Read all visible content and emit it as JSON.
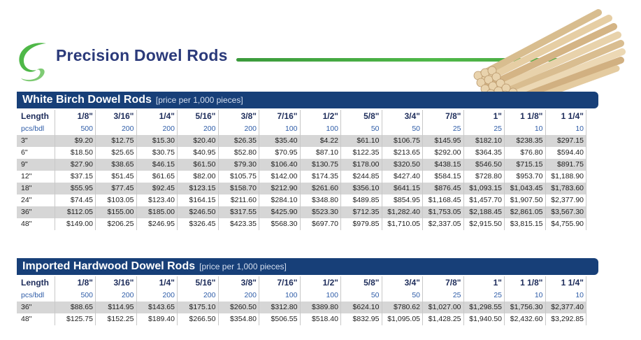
{
  "page_title": "Precision Dowel Rods",
  "colors": {
    "navy": "#173f78",
    "green": "#4fb848",
    "title": "#2b3a7a",
    "shade": "#d6d6d6"
  },
  "header_labels": {
    "length": "Length",
    "pcs": "pcs/bdl"
  },
  "sizes": [
    "1/8\"",
    "3/16\"",
    "1/4\"",
    "5/16\"",
    "3/8\"",
    "7/16\"",
    "1/2\"",
    "5/8\"",
    "3/4\"",
    "7/8\"",
    "1\"",
    "1 1/8\"",
    "1 1/4\""
  ],
  "pcs_per_bundle": [
    "500",
    "200",
    "200",
    "200",
    "200",
    "100",
    "100",
    "50",
    "50",
    "25",
    "25",
    "10",
    "10"
  ],
  "birch": {
    "title": "White Birch Dowel Rods",
    "note": "[price per 1,000 pieces]",
    "rows": [
      {
        "length": "3\"",
        "prices": [
          "$9.20",
          "$12.75",
          "$15.30",
          "$20.40",
          "$26.35",
          "$35.40",
          "$4.22",
          "$61.10",
          "$106.75",
          "$145.95",
          "$182.10",
          "$238.35",
          "$297.15"
        ]
      },
      {
        "length": "6\"",
        "prices": [
          "$18.50",
          "$25.65",
          "$30.75",
          "$40.95",
          "$52.80",
          "$70.95",
          "$87.10",
          "$122.35",
          "$213.65",
          "$292.00",
          "$364.35",
          "$76.80",
          "$594.40"
        ]
      },
      {
        "length": "9\"",
        "prices": [
          "$27.90",
          "$38.65",
          "$46.15",
          "$61.50",
          "$79.30",
          "$106.40",
          "$130.75",
          "$178.00",
          "$320.50",
          "$438.15",
          "$546.50",
          "$715.15",
          "$891.75"
        ]
      },
      {
        "length": "12\"",
        "prices": [
          "$37.15",
          "$51.45",
          "$61.65",
          "$82.00",
          "$105.75",
          "$142.00",
          "$174.35",
          "$244.85",
          "$427.40",
          "$584.15",
          "$728.80",
          "$953.70",
          "$1,188.90"
        ]
      },
      {
        "length": "18\"",
        "prices": [
          "$55.95",
          "$77.45",
          "$92.45",
          "$123.15",
          "$158.70",
          "$212.90",
          "$261.60",
          "$356.10",
          "$641.15",
          "$876.45",
          "$1,093.15",
          "$1,043.45",
          "$1,783.60"
        ]
      },
      {
        "length": "24\"",
        "prices": [
          "$74.45",
          "$103.05",
          "$123.40",
          "$164.15",
          "$211.60",
          "$284.10",
          "$348.80",
          "$489.85",
          "$854.95",
          "$1,168.45",
          "$1,457.70",
          "$1,907.50",
          "$2,377.90"
        ]
      },
      {
        "length": "36\"",
        "prices": [
          "$112.05",
          "$155.00",
          "$185.00",
          "$246.50",
          "$317.55",
          "$425.90",
          "$523.30",
          "$712.35",
          "$1,282.40",
          "$1,753.05",
          "$2,188.45",
          "$2,861.05",
          "$3,567.30"
        ]
      },
      {
        "length": "48\"",
        "prices": [
          "$149.00",
          "$206.25",
          "$246.95",
          "$326.45",
          "$423.35",
          "$568.30",
          "$697.70",
          "$979.85",
          "$1,710.05",
          "$2,337.05",
          "$2,915.50",
          "$3,815.15",
          "$4,755.90"
        ]
      }
    ]
  },
  "hardwood": {
    "title": "Imported Hardwood Dowel Rods",
    "note": "[price per 1,000 pieces]",
    "rows": [
      {
        "length": "36\"",
        "prices": [
          "$88.65",
          "$114.95",
          "$143.65",
          "$175.10",
          "$260.50",
          "$312.80",
          "$389.80",
          "$624.10",
          "$780.62",
          "$1,027.00",
          "$1,298.55",
          "$1,756.30",
          "$2,377.40"
        ]
      },
      {
        "length": "48\"",
        "prices": [
          "$125.75",
          "$152.25",
          "$189.40",
          "$266.50",
          "$354.80",
          "$506.55",
          "$518.40",
          "$832.95",
          "$1,095.05",
          "$1,428.25",
          "$1,940.50",
          "$2,432.60",
          "$3,292.85"
        ]
      }
    ]
  }
}
